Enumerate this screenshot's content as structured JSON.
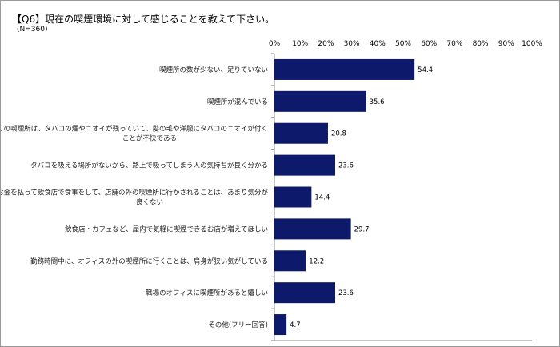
{
  "chart_data": {
    "type": "bar",
    "orientation": "horizontal",
    "title": "【Q6】現在の喫煙環境に対して感じることを教えて下さい。",
    "subtitle": "(N=360)",
    "categories": [
      [
        "喫煙所の数が少ない、足りていない"
      ],
      [
        "喫煙所が混んでいる"
      ],
      [
        "多くの喫煙所は、タバコの煙やニオイが残っていて、髪の毛や洋服にタバコのニオイが付く",
        "ことが不快である"
      ],
      [
        "タバコを吸える場所がないから、路上で吸ってしまう人の気持ちが良く分かる"
      ],
      [
        "お金を払って飲食店で食事をして、店舗の外の喫煙所に行かされることは、あまり気分が",
        "良くない"
      ],
      [
        "飲食店・カフェなど、屋内で気軽に喫煙できるお店が増えてほしい"
      ],
      [
        "勤務時間中に、オフィスの外の喫煙所に行くことは、肩身が狭い気がしている"
      ],
      [
        "職場のオフィスに喫煙所があると嬉しい"
      ],
      [
        "その他(フリー回答)"
      ]
    ],
    "values": [
      54.4,
      35.6,
      20.8,
      23.6,
      14.4,
      29.7,
      12.2,
      23.6,
      4.7
    ],
    "xlim": [
      0,
      100
    ],
    "ticks": [
      "0%",
      "10%",
      "20%",
      "30%",
      "40%",
      "50%",
      "60%",
      "70%",
      "80%",
      "90%",
      "100%"
    ],
    "axis_position": "top",
    "grid": false,
    "bar_color": "#0d1a6b"
  }
}
